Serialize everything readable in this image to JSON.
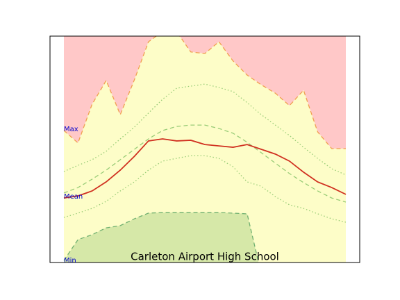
{
  "chart_data": {
    "type": "line",
    "title": "Carleton Airport High School",
    "annotations": [
      "Max",
      "Mean",
      "Min"
    ],
    "xlim": [
      0,
      100
    ],
    "ylim": [
      0,
      100
    ],
    "x": [
      0,
      5,
      10,
      15,
      20,
      25,
      30,
      35,
      40,
      45,
      50,
      55,
      60,
      65,
      70,
      75,
      80,
      85,
      90,
      95,
      100
    ],
    "series": [
      {
        "color": "#f0a050",
        "dash": "dashed",
        "fill": "above",
        "fill_color": "#ffc8c8",
        "values": [
          58.3,
          52.8,
          69.9,
          80.4,
          65.3,
          80.7,
          97.5,
          102,
          102,
          93,
          92.3,
          97.5,
          89,
          82.8,
          78.5,
          74.8,
          69.3,
          76.1,
          57.7,
          50.3,
          50.3
        ]
      },
      {
        "color": "#f0a050",
        "dash": "none",
        "fill": "below",
        "fill_color": "#fdfdc8",
        "values": [
          58.3,
          52.8,
          69.9,
          80.4,
          65.3,
          80.7,
          97.5,
          102,
          102,
          93,
          92.3,
          97.5,
          89,
          82.8,
          78.5,
          74.8,
          69.3,
          76.1,
          57.7,
          50.3,
          50.3
        ]
      },
      {
        "color": "#70b070",
        "dash": "dashed",
        "fill": "below",
        "fill_color": "#d6e8a8",
        "values": [
          0.9,
          10.1,
          12.3,
          15.3,
          16.3,
          19.3,
          21.8,
          22.1,
          22.1,
          22.1,
          22.1,
          22.1,
          21.8,
          21.5,
          -5,
          -5,
          -5,
          -5,
          -5,
          -5,
          -5
        ]
      },
      {
        "color": "#99cc77",
        "dash": "dotted",
        "fill": "none",
        "values": [
          40.2,
          42.9,
          45.4,
          49.1,
          54.6,
          59.8,
          66,
          72.1,
          77,
          77.9,
          78.8,
          77.3,
          75.5,
          70.6,
          65.3,
          60.7,
          56.1,
          50.9,
          46,
          41.4,
          38.7
        ]
      },
      {
        "color": "#99cc77",
        "dash": "dashed",
        "fill": "none",
        "values": [
          30.7,
          33.1,
          36.8,
          40.8,
          45.4,
          50,
          54.6,
          58.3,
          60.1,
          60.7,
          60.7,
          59.2,
          57.1,
          53.1,
          48.5,
          43.9,
          39.3,
          35.3,
          31.6,
          28.5,
          26.7
        ]
      },
      {
        "color": "#99cc77",
        "dash": "dotted",
        "fill": "none",
        "values": [
          19.9,
          21.8,
          23.9,
          27,
          31.6,
          35.6,
          40.8,
          44.8,
          46,
          47.2,
          47.2,
          46,
          42.3,
          35.6,
          33.7,
          29.1,
          25.5,
          23.9,
          21.5,
          19.3,
          17.8
        ]
      },
      {
        "color": "#d03020",
        "dash": "solid",
        "fill": "none",
        "values": [
          28.5,
          29.4,
          31.6,
          35.6,
          40.8,
          46.9,
          53.7,
          54.6,
          53.7,
          54,
          52.1,
          51.5,
          50.9,
          52.1,
          50,
          47.9,
          44.8,
          39.9,
          35.6,
          33.1,
          30.1
        ]
      }
    ]
  }
}
